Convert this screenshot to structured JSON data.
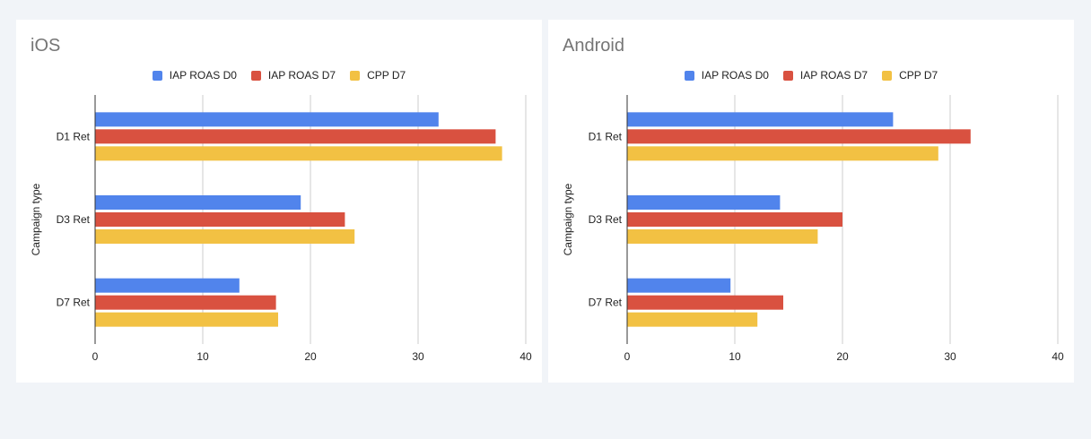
{
  "chart_data": [
    {
      "type": "bar",
      "orientation": "horizontal",
      "title": "iOS",
      "categories": [
        "D1 Ret",
        "D3 Ret",
        "D7 Ret"
      ],
      "series": [
        {
          "name": "IAP ROAS D0",
          "color": "#5184ec",
          "values": [
            31.9,
            19.1,
            13.4
          ]
        },
        {
          "name": "IAP ROAS D7",
          "color": "#d95140",
          "values": [
            37.2,
            23.2,
            16.8
          ]
        },
        {
          "name": "CPP D7",
          "color": "#f2c143",
          "values": [
            37.8,
            24.1,
            17.0
          ]
        }
      ],
      "xlabel": "",
      "ylabel": "Campaign type",
      "xlim": [
        0,
        40
      ],
      "xticks": [
        0,
        10,
        20,
        30,
        40
      ],
      "grid": true,
      "legend": "top-center"
    },
    {
      "type": "bar",
      "orientation": "horizontal",
      "title": "Android",
      "categories": [
        "D1 Ret",
        "D3 Ret",
        "D7 Ret"
      ],
      "series": [
        {
          "name": "IAP ROAS D0",
          "color": "#5184ec",
          "values": [
            24.7,
            14.2,
            9.6
          ]
        },
        {
          "name": "IAP ROAS D7",
          "color": "#d95140",
          "values": [
            31.9,
            20.0,
            14.5
          ]
        },
        {
          "name": "CPP D7",
          "color": "#f2c143",
          "values": [
            28.9,
            17.7,
            12.1
          ]
        }
      ],
      "xlabel": "",
      "ylabel": "Campaign type",
      "xlim": [
        0,
        40
      ],
      "xticks": [
        0,
        10,
        20,
        30,
        40
      ],
      "grid": true,
      "legend": "top-center"
    }
  ]
}
